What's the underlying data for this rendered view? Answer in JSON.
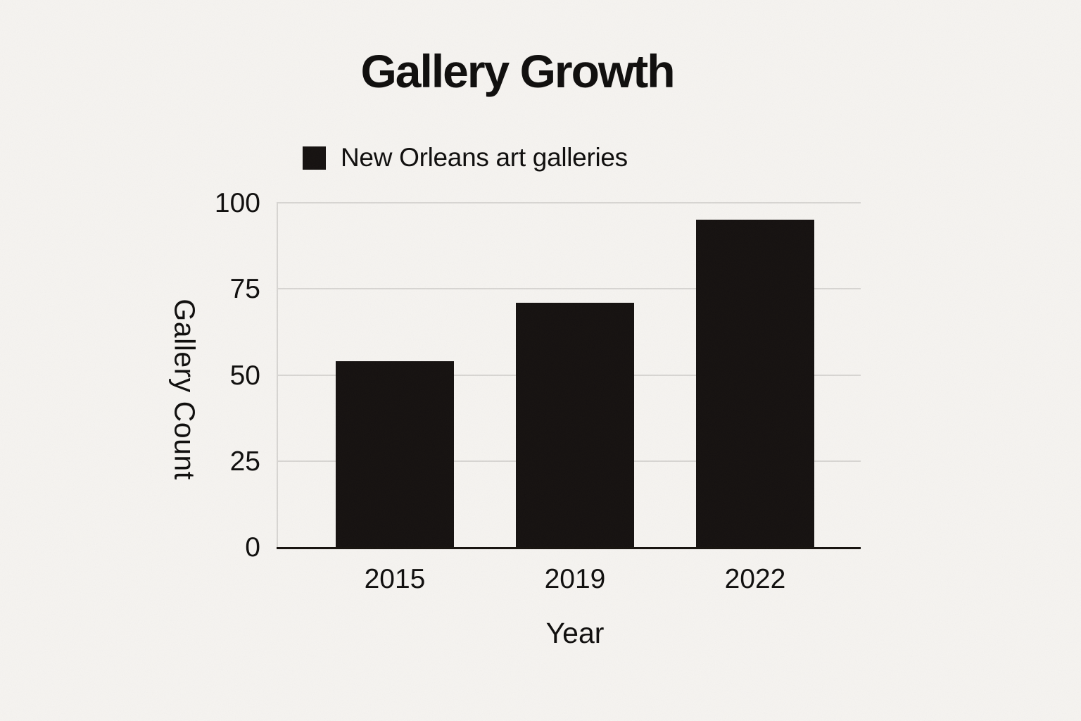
{
  "chart_data": {
    "type": "bar",
    "title": "Gallery Growth",
    "legend": [
      {
        "label": "New Orleans art galleries",
        "color": "#151110"
      }
    ],
    "categories": [
      "2015",
      "2019",
      "2022"
    ],
    "values": [
      54,
      71,
      95
    ],
    "xlabel": "Year",
    "ylabel": "Gallery Count",
    "yticks": [
      0,
      25,
      50,
      75,
      100
    ],
    "ylim": [
      0,
      100
    ],
    "grid": true,
    "legend_position": "top-left-above-plot"
  },
  "colors": {
    "background": "#f7f5f2",
    "bar": "#151110",
    "gridline": "#d9d7d4",
    "axis_line": "#17130f",
    "text": "#0f0e0d"
  }
}
